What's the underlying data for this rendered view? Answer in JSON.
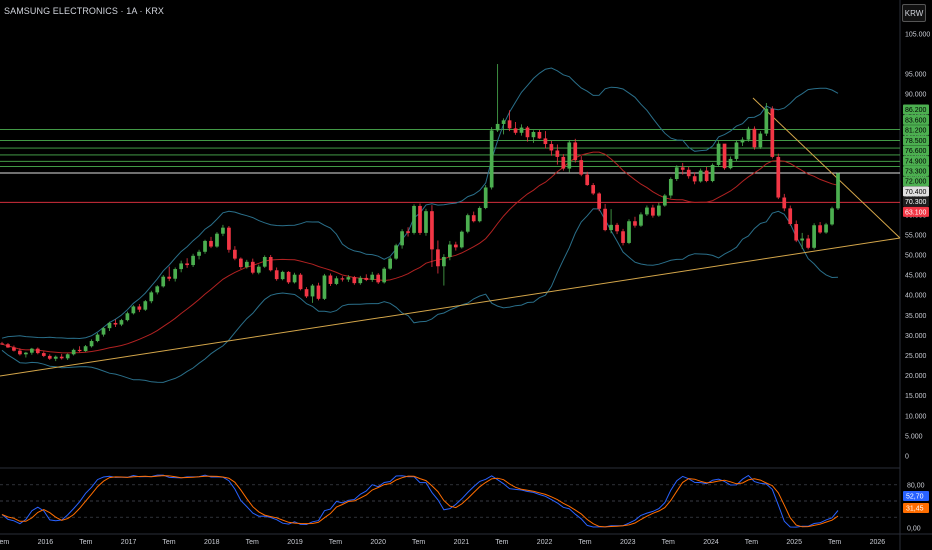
{
  "header": {
    "title": "SAMSUNG ELECTRONICS · 1A · KRX",
    "currency_button": "KRW"
  },
  "colors": {
    "up": "#26a69a",
    "up_candle": "#4caf50",
    "down": "#f23645",
    "bollinger": "#2a6f8a",
    "basis": "#b22222",
    "hline_green": "#4caf50",
    "hline_red": "#f23645",
    "hline_white": "#e0e0e0",
    "trendline": "#d4a64a",
    "stoch_k": "#2962ff",
    "stoch_d": "#ff6d00"
  },
  "chart_data": {
    "type": "candlestick",
    "title": "SAMSUNG ELECTRONICS · 1A · KRX",
    "y_axis": {
      "ticks": [
        "105.000",
        "95.000",
        "90.000",
        "85.000",
        "80.000",
        "75.000",
        "70.000",
        "65.000",
        "60.000",
        "55.000",
        "50.000",
        "45.000",
        "40.000",
        "35.000",
        "30.000",
        "25.000",
        "20.000",
        "15.000",
        "10.000",
        "5.000",
        "0"
      ]
    },
    "x_axis": {
      "ticks": [
        "Tem",
        "2016",
        "Tem",
        "2017",
        "Tem",
        "2018",
        "Tem",
        "2019",
        "Tem",
        "2020",
        "Tem",
        "2021",
        "Tem",
        "2022",
        "Tem",
        "2023",
        "Tem",
        "2024",
        "Tem",
        "2025",
        "Tem",
        "2026"
      ]
    },
    "price_tags": [
      {
        "label": "86.200",
        "kind": "green"
      },
      {
        "label": "83.600",
        "kind": "green"
      },
      {
        "label": "81.200",
        "kind": "green"
      },
      {
        "label": "78.500",
        "kind": "green"
      },
      {
        "label": "76.600",
        "kind": "green"
      },
      {
        "label": "74.900",
        "kind": "green"
      },
      {
        "label": "73.300",
        "kind": "green"
      },
      {
        "label": "72.000",
        "kind": "green"
      },
      {
        "label": "70.400",
        "kind": "white"
      },
      {
        "label": "70.300",
        "kind": "current"
      },
      {
        "label": "63.100",
        "kind": "red"
      }
    ],
    "levels_plotted": [
      81.2,
      78.5,
      76.6,
      74.9,
      73.3,
      72.0,
      70.4,
      63.1
    ],
    "candles": [
      [
        28.0,
        28.4,
        27.6,
        27.8
      ],
      [
        27.8,
        28.1,
        26.9,
        27.0
      ],
      [
        27.0,
        27.5,
        26.0,
        26.2
      ],
      [
        26.2,
        26.8,
        25.0,
        25.3
      ],
      [
        25.3,
        25.9,
        24.5,
        25.7
      ],
      [
        25.7,
        26.9,
        25.2,
        26.7
      ],
      [
        26.7,
        27.0,
        25.3,
        25.6
      ],
      [
        25.6,
        26.0,
        24.6,
        24.9
      ],
      [
        24.9,
        25.3,
        23.9,
        24.2
      ],
      [
        24.2,
        25.0,
        23.6,
        24.7
      ],
      [
        24.7,
        25.4,
        24.0,
        24.3
      ],
      [
        24.3,
        25.5,
        23.9,
        25.3
      ],
      [
        25.3,
        26.7,
        25.0,
        26.4
      ],
      [
        26.4,
        27.3,
        25.8,
        26.1
      ],
      [
        26.1,
        27.6,
        25.9,
        27.3
      ],
      [
        27.3,
        29.0,
        27.0,
        28.6
      ],
      [
        28.6,
        30.6,
        28.3,
        30.2
      ],
      [
        30.2,
        32.1,
        29.7,
        31.8
      ],
      [
        31.8,
        33.4,
        31.1,
        33.1
      ],
      [
        33.1,
        34.0,
        32.1,
        32.7
      ],
      [
        32.7,
        34.1,
        32.3,
        33.8
      ],
      [
        33.8,
        35.9,
        33.5,
        35.5
      ],
      [
        35.5,
        37.5,
        35.2,
        37.2
      ],
      [
        37.2,
        37.8,
        35.8,
        36.4
      ],
      [
        36.4,
        38.8,
        36.1,
        38.5
      ],
      [
        38.5,
        41.1,
        38.0,
        40.7
      ],
      [
        40.7,
        42.5,
        40.2,
        42.2
      ],
      [
        42.2,
        45.0,
        41.9,
        44.6
      ],
      [
        44.6,
        47.1,
        43.5,
        44.1
      ],
      [
        44.1,
        46.9,
        43.4,
        46.5
      ],
      [
        46.5,
        48.6,
        45.7,
        47.9
      ],
      [
        47.9,
        49.2,
        46.8,
        47.5
      ],
      [
        47.5,
        50.3,
        47.0,
        49.8
      ],
      [
        49.8,
        51.3,
        48.9,
        50.8
      ],
      [
        50.8,
        53.8,
        50.3,
        53.5
      ],
      [
        53.5,
        54.5,
        51.7,
        52.1
      ],
      [
        52.1,
        55.7,
        51.8,
        55.3
      ],
      [
        55.3,
        57.5,
        54.7,
        56.8
      ],
      [
        56.8,
        57.2,
        50.6,
        51.3
      ],
      [
        51.3,
        52.2,
        48.7,
        49.1
      ],
      [
        49.1,
        49.4,
        46.5,
        47.0
      ],
      [
        47.0,
        48.8,
        46.6,
        48.3
      ],
      [
        48.3,
        49.1,
        45.2,
        45.6
      ],
      [
        45.6,
        47.6,
        45.2,
        47.1
      ],
      [
        47.1,
        49.9,
        46.8,
        49.5
      ],
      [
        49.5,
        50.0,
        45.9,
        46.2
      ],
      [
        46.2,
        46.9,
        43.6,
        44.0
      ],
      [
        44.0,
        46.1,
        43.7,
        45.8
      ],
      [
        45.8,
        46.0,
        42.8,
        43.2
      ],
      [
        43.2,
        45.6,
        42.9,
        45.1
      ],
      [
        45.1,
        45.5,
        41.2,
        41.5
      ],
      [
        41.5,
        42.0,
        39.3,
        39.7
      ],
      [
        39.7,
        42.8,
        38.1,
        42.4
      ],
      [
        42.4,
        43.1,
        38.7,
        39.1
      ],
      [
        39.1,
        45.3,
        38.8,
        44.9
      ],
      [
        44.9,
        45.4,
        42.3,
        42.8
      ],
      [
        42.8,
        44.7,
        42.5,
        44.2
      ],
      [
        44.2,
        44.7,
        43.4,
        43.9
      ],
      [
        43.9,
        45.0,
        43.3,
        44.5
      ],
      [
        44.5,
        44.8,
        42.6,
        43.0
      ],
      [
        43.0,
        44.8,
        42.6,
        44.3
      ],
      [
        44.3,
        45.2,
        43.5,
        43.8
      ],
      [
        43.8,
        45.8,
        43.3,
        45.1
      ],
      [
        45.1,
        45.5,
        42.8,
        43.2
      ],
      [
        43.2,
        47.0,
        42.9,
        46.6
      ],
      [
        46.6,
        49.5,
        46.3,
        49.1
      ],
      [
        49.1,
        52.8,
        48.8,
        52.4
      ],
      [
        52.4,
        56.4,
        51.6,
        55.9
      ],
      [
        55.9,
        56.9,
        54.6,
        55.5
      ],
      [
        55.5,
        62.6,
        55.1,
        62.2
      ],
      [
        62.2,
        62.8,
        55.0,
        55.5
      ],
      [
        55.5,
        61.5,
        54.8,
        60.9
      ],
      [
        60.9,
        62.4,
        47.0,
        51.4
      ],
      [
        51.4,
        53.6,
        45.4,
        47.2
      ],
      [
        47.2,
        50.2,
        42.4,
        49.5
      ],
      [
        49.5,
        53.5,
        48.7,
        52.6
      ],
      [
        52.6,
        53.3,
        51.1,
        51.9
      ],
      [
        51.9,
        56.1,
        51.6,
        55.8
      ],
      [
        55.8,
        60.3,
        55.4,
        59.9
      ],
      [
        59.9,
        60.8,
        58.1,
        58.4
      ],
      [
        58.4,
        62.1,
        58.1,
        61.7
      ],
      [
        61.7,
        67.4,
        61.4,
        66.8
      ],
      [
        66.8,
        81.8,
        66.3,
        81.0
      ],
      [
        81.0,
        97.5,
        80.6,
        82.6
      ],
      [
        82.6,
        84.0,
        80.0,
        83.5
      ],
      [
        83.5,
        86.0,
        80.8,
        81.5
      ],
      [
        81.5,
        83.1,
        79.9,
        80.4
      ],
      [
        80.4,
        82.5,
        79.7,
        81.7
      ],
      [
        81.7,
        82.1,
        78.2,
        79.3
      ],
      [
        79.3,
        81.0,
        77.9,
        80.6
      ],
      [
        80.6,
        81.1,
        78.9,
        79.0
      ],
      [
        79.0,
        80.8,
        76.5,
        77.6
      ],
      [
        77.6,
        78.4,
        74.7,
        76.0
      ],
      [
        76.0,
        77.5,
        72.5,
        74.4
      ],
      [
        74.4,
        75.1,
        71.0,
        71.5
      ],
      [
        71.5,
        78.6,
        70.6,
        78.0
      ],
      [
        78.0,
        78.9,
        73.0,
        73.6
      ],
      [
        73.6,
        74.6,
        69.6,
        70.0
      ],
      [
        70.0,
        70.7,
        67.2,
        67.4
      ],
      [
        67.4,
        67.9,
        64.9,
        65.3
      ],
      [
        65.3,
        65.6,
        60.9,
        61.5
      ],
      [
        61.5,
        62.7,
        55.9,
        56.2
      ],
      [
        56.2,
        61.4,
        55.4,
        57.5
      ],
      [
        57.5,
        58.0,
        55.2,
        55.9
      ],
      [
        55.9,
        56.5,
        52.4,
        53.0
      ],
      [
        53.0,
        58.9,
        52.7,
        58.4
      ],
      [
        58.4,
        59.5,
        56.8,
        57.3
      ],
      [
        57.3,
        60.6,
        57.0,
        60.1
      ],
      [
        60.1,
        62.3,
        59.7,
        61.8
      ],
      [
        61.8,
        62.5,
        59.3,
        59.8
      ],
      [
        59.8,
        63.0,
        59.5,
        62.3
      ],
      [
        62.3,
        65.2,
        62.0,
        64.8
      ],
      [
        64.8,
        69.3,
        64.1,
        68.9
      ],
      [
        68.9,
        72.3,
        68.4,
        71.8
      ],
      [
        71.8,
        72.9,
        70.0,
        71.2
      ],
      [
        71.2,
        71.9,
        69.0,
        69.6
      ],
      [
        69.6,
        70.6,
        67.6,
        68.3
      ],
      [
        68.3,
        71.5,
        68.0,
        71.0
      ],
      [
        71.0,
        71.9,
        68.1,
        68.4
      ],
      [
        68.4,
        72.8,
        68.1,
        72.4
      ],
      [
        72.4,
        78.3,
        71.9,
        77.7
      ],
      [
        77.7,
        77.6,
        71.2,
        71.6
      ],
      [
        71.6,
        74.5,
        71.3,
        73.9
      ],
      [
        73.9,
        78.4,
        73.4,
        78.0
      ],
      [
        78.0,
        79.3,
        77.1,
        78.7
      ],
      [
        78.7,
        81.9,
        78.2,
        81.4
      ],
      [
        81.4,
        82.0,
        76.2,
        76.8
      ],
      [
        76.8,
        80.8,
        76.4,
        80.2
      ],
      [
        80.2,
        87.8,
        79.6,
        86.4
      ],
      [
        86.4,
        87.0,
        74.0,
        74.4
      ],
      [
        74.4,
        75.2,
        63.9,
        64.3
      ],
      [
        64.3,
        65.2,
        60.9,
        61.6
      ],
      [
        61.6,
        62.3,
        57.3,
        57.7
      ],
      [
        57.7,
        58.6,
        53.2,
        53.6
      ],
      [
        53.6,
        55.5,
        51.5,
        54.1
      ],
      [
        54.1,
        55.0,
        51.4,
        51.8
      ],
      [
        51.8,
        57.9,
        51.4,
        57.4
      ],
      [
        57.4,
        58.2,
        55.3,
        55.6
      ],
      [
        55.6,
        58.0,
        55.3,
        57.6
      ],
      [
        57.6,
        62.0,
        57.3,
        61.6
      ],
      [
        61.6,
        70.5,
        61.2,
        70.3
      ]
    ],
    "stochastic": {
      "ticks": [
        "80,00",
        "20,00",
        "0,00"
      ],
      "k_label": "52,70",
      "d_label": "31,45"
    }
  }
}
